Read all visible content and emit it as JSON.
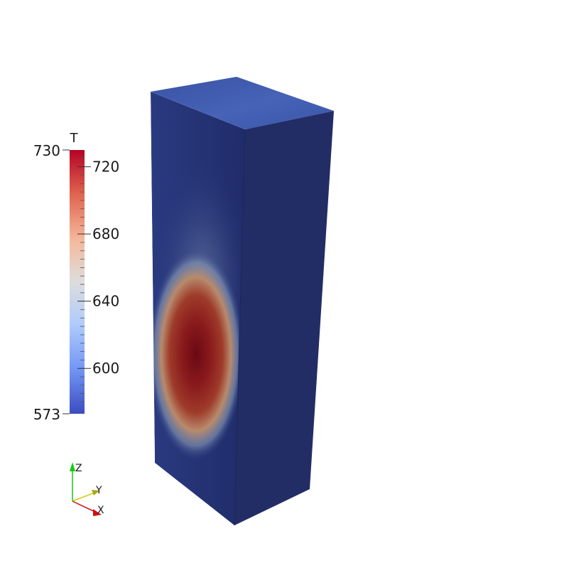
{
  "scalar_bar": {
    "title": "T",
    "range_min": "573",
    "range_max": "730",
    "min_value": 573,
    "max_value": 730,
    "ticks": [
      {
        "value": 720,
        "label": "720"
      },
      {
        "value": 680,
        "label": "680"
      },
      {
        "value": 640,
        "label": "640"
      },
      {
        "value": 600,
        "label": "600"
      }
    ],
    "colormap": [
      "#3b4cc0",
      "#7396f5",
      "#b0cbfc",
      "#dddddd",
      "#f5b89b",
      "#e0654f",
      "#b40426"
    ]
  },
  "axes_triad": {
    "z_label": "Z",
    "y_label": "Y",
    "x_label": "X",
    "z_color": "#11cc11",
    "y_color": "#cccc11",
    "x_color": "#cc1111"
  },
  "block": {
    "top_color": "#3c56a8",
    "side_color": "#222d66",
    "base_color": "#263579",
    "hot_color": "#6b0a12"
  }
}
